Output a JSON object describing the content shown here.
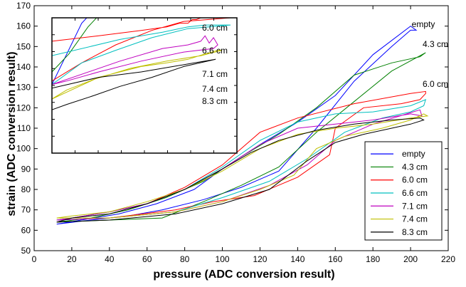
{
  "chart_data": {
    "type": "line",
    "title": "",
    "xlabel": "pressure (ADC conversion result)",
    "ylabel": "strain (ADC conversion result)",
    "xlim": [
      0,
      220
    ],
    "ylim": [
      50,
      170
    ],
    "xticks": [
      0,
      20,
      40,
      60,
      80,
      100,
      120,
      140,
      160,
      180,
      200,
      220
    ],
    "yticks": [
      50,
      60,
      70,
      80,
      90,
      100,
      110,
      120,
      130,
      140,
      150,
      160,
      170
    ],
    "grid": false,
    "legend_position": "bottom-right",
    "series": [
      {
        "name": "empty",
        "color": "#0000ff",
        "label": "empty",
        "points": [
          [
            12,
            63
          ],
          [
            30,
            65
          ],
          [
            50,
            67
          ],
          [
            68,
            70
          ],
          [
            90,
            75
          ],
          [
            110,
            81
          ],
          [
            130,
            89
          ],
          [
            150,
            110
          ],
          [
            170,
            133
          ],
          [
            190,
            150
          ],
          [
            200,
            158
          ],
          [
            203,
            158
          ],
          [
            200,
            160
          ],
          [
            180,
            146
          ],
          [
            160,
            126
          ],
          [
            140,
            113
          ],
          [
            120,
            102
          ],
          [
            100,
            90
          ],
          [
            85,
            80
          ],
          [
            65,
            73
          ],
          [
            45,
            68
          ],
          [
            25,
            65
          ],
          [
            12,
            63
          ]
        ]
      },
      {
        "name": "4.3 cm",
        "color": "#008000",
        "label": "4.3 cm",
        "points": [
          [
            12,
            64
          ],
          [
            40,
            65
          ],
          [
            68,
            66
          ],
          [
            90,
            74
          ],
          [
            110,
            82
          ],
          [
            130,
            91
          ],
          [
            150,
            108
          ],
          [
            170,
            123
          ],
          [
            190,
            138
          ],
          [
            204,
            145
          ],
          [
            208,
            147
          ],
          [
            205,
            145
          ],
          [
            190,
            142
          ],
          [
            170,
            136
          ],
          [
            150,
            120
          ],
          [
            130,
            107
          ],
          [
            110,
            96
          ],
          [
            90,
            84
          ],
          [
            70,
            76
          ],
          [
            50,
            70
          ],
          [
            30,
            66
          ],
          [
            12,
            64
          ]
        ]
      },
      {
        "name": "6.0 cm",
        "color": "#ff0000",
        "label": "6.0 cm",
        "points": [
          [
            12,
            65
          ],
          [
            40,
            66
          ],
          [
            75,
            70
          ],
          [
            95,
            74
          ],
          [
            117,
            77
          ],
          [
            140,
            86
          ],
          [
            157,
            97
          ],
          [
            160,
            110
          ],
          [
            175,
            120
          ],
          [
            195,
            122
          ],
          [
            205,
            124
          ],
          [
            208,
            127
          ],
          [
            208,
            128
          ],
          [
            200,
            127
          ],
          [
            170,
            122
          ],
          [
            140,
            115
          ],
          [
            120,
            108
          ],
          [
            100,
            92
          ],
          [
            80,
            81
          ],
          [
            60,
            73
          ],
          [
            40,
            69
          ],
          [
            20,
            66
          ],
          [
            12,
            65
          ]
        ]
      },
      {
        "name": "6.6 cm",
        "color": "#00bfbf",
        "label": "6.6 cm",
        "points": [
          [
            12,
            65
          ],
          [
            40,
            66
          ],
          [
            75,
            69
          ],
          [
            100,
            76
          ],
          [
            125,
            84
          ],
          [
            145,
            95
          ],
          [
            165,
            108
          ],
          [
            185,
            115
          ],
          [
            200,
            118
          ],
          [
            207,
            121
          ],
          [
            208,
            124
          ],
          [
            200,
            121
          ],
          [
            180,
            118
          ],
          [
            160,
            117
          ],
          [
            140,
            113
          ],
          [
            120,
            104
          ],
          [
            100,
            91
          ],
          [
            80,
            80
          ],
          [
            60,
            73
          ],
          [
            40,
            69
          ],
          [
            20,
            66
          ],
          [
            12,
            65
          ]
        ]
      },
      {
        "name": "7.1 cm",
        "color": "#bf00bf",
        "label": "7.1 cm",
        "points": [
          [
            12,
            65
          ],
          [
            40,
            66
          ],
          [
            75,
            69
          ],
          [
            100,
            74
          ],
          [
            125,
            82
          ],
          [
            145,
            92
          ],
          [
            160,
            104
          ],
          [
            180,
            112
          ],
          [
            198,
            117
          ],
          [
            205,
            119
          ],
          [
            206,
            116
          ],
          [
            200,
            117
          ],
          [
            180,
            114
          ],
          [
            160,
            112
          ],
          [
            140,
            110
          ],
          [
            120,
            102
          ],
          [
            100,
            90
          ],
          [
            80,
            80
          ],
          [
            60,
            73
          ],
          [
            40,
            69
          ],
          [
            20,
            66
          ],
          [
            12,
            65
          ]
        ]
      },
      {
        "name": "7.4 cm",
        "color": "#bfbf00",
        "label": "7.4 cm",
        "points": [
          [
            12,
            66
          ],
          [
            40,
            66
          ],
          [
            75,
            69
          ],
          [
            100,
            74
          ],
          [
            120,
            80
          ],
          [
            138,
            87
          ],
          [
            150,
            100
          ],
          [
            165,
            106
          ],
          [
            185,
            110
          ],
          [
            200,
            114
          ],
          [
            207,
            117
          ],
          [
            209,
            116
          ],
          [
            200,
            115
          ],
          [
            180,
            112
          ],
          [
            160,
            110
          ],
          [
            140,
            107
          ],
          [
            120,
            100
          ],
          [
            100,
            89
          ],
          [
            80,
            80
          ],
          [
            60,
            74
          ],
          [
            40,
            69
          ],
          [
            20,
            67
          ],
          [
            12,
            66
          ]
        ]
      },
      {
        "name": "8.3 cm",
        "color": "#000000",
        "label": "8.3 cm",
        "points": [
          [
            12,
            64
          ],
          [
            40,
            65
          ],
          [
            75,
            68
          ],
          [
            100,
            73
          ],
          [
            125,
            80
          ],
          [
            145,
            94
          ],
          [
            160,
            103
          ],
          [
            175,
            107
          ],
          [
            190,
            110
          ],
          [
            200,
            112
          ],
          [
            207,
            114
          ],
          [
            205,
            115
          ],
          [
            190,
            114
          ],
          [
            170,
            112
          ],
          [
            150,
            109
          ],
          [
            130,
            104
          ],
          [
            115,
            98
          ],
          [
            100,
            90
          ],
          [
            80,
            80
          ],
          [
            60,
            73
          ],
          [
            40,
            68
          ],
          [
            20,
            66
          ],
          [
            12,
            64
          ]
        ]
      }
    ],
    "inset": {
      "xlim": [
        8,
        95
      ],
      "ylim": [
        90,
        165
      ],
      "series_labels": [
        "6.0 cm",
        "6.6 cm",
        "7.1 cm",
        "7.4 cm",
        "8.3 cm"
      ],
      "series": [
        {
          "name": "empty",
          "points": [
            [
              8,
              128
            ],
            [
              15,
              145
            ],
            [
              22,
              162
            ],
            [
              30,
              172
            ]
          ]
        },
        {
          "name": "4.3 cm",
          "points": [
            [
              8,
              135
            ],
            [
              16,
              145
            ],
            [
              25,
              160
            ],
            [
              33,
              170
            ]
          ]
        },
        {
          "name": "6.0 cm",
          "points": [
            [
              8,
              152
            ],
            [
              30,
              155
            ],
            [
              50,
              158
            ],
            [
              62,
              160
            ],
            [
              68,
              162
            ],
            [
              72,
              162
            ],
            [
              74,
              164
            ],
            [
              76,
              164
            ],
            [
              80,
              166
            ],
            [
              86,
              165
            ],
            [
              92,
              165
            ],
            [
              70,
              163
            ],
            [
              55,
              158
            ],
            [
              38,
              150
            ],
            [
              22,
              140
            ],
            [
              8,
              130
            ]
          ]
        },
        {
          "name": "6.6 cm",
          "points": [
            [
              8,
              144
            ],
            [
              40,
              153
            ],
            [
              60,
              157
            ],
            [
              72,
              160
            ],
            [
              80,
              161
            ],
            [
              86,
              161
            ],
            [
              92,
              161
            ],
            [
              72,
              159
            ],
            [
              55,
              154
            ],
            [
              38,
              147
            ],
            [
              22,
              140
            ],
            [
              8,
              128
            ]
          ]
        },
        {
          "name": "7.1 cm",
          "points": [
            [
              8,
              128
            ],
            [
              40,
              141
            ],
            [
              60,
              148
            ],
            [
              72,
              150
            ],
            [
              78,
              152
            ],
            [
              80,
              155
            ],
            [
              82,
              151
            ],
            [
              84,
              154
            ],
            [
              86,
              150
            ],
            [
              84,
              148
            ],
            [
              70,
              146
            ],
            [
              50,
              141
            ],
            [
              30,
              135
            ],
            [
              15,
              130
            ],
            [
              8,
              128
            ]
          ]
        },
        {
          "name": "7.4 cm",
          "points": [
            [
              8,
              120
            ],
            [
              30,
              132
            ],
            [
              50,
              138
            ],
            [
              62,
              140
            ],
            [
              72,
              142
            ],
            [
              80,
              145
            ],
            [
              86,
              147
            ],
            [
              88,
              147
            ],
            [
              78,
              144
            ],
            [
              62,
              141
            ],
            [
              45,
              137
            ],
            [
              28,
              131
            ],
            [
              15,
              125
            ],
            [
              8,
              120
            ]
          ]
        },
        {
          "name": "8.3 cm",
          "points": [
            [
              8,
              126
            ],
            [
              30,
              132
            ],
            [
              50,
              135
            ],
            [
              65,
              138
            ],
            [
              75,
              140
            ],
            [
              80,
              141
            ],
            [
              85,
              142
            ],
            [
              70,
              138
            ],
            [
              55,
              132
            ],
            [
              40,
              127
            ],
            [
              28,
              122
            ],
            [
              15,
              117
            ],
            [
              8,
              114
            ]
          ]
        }
      ]
    }
  }
}
